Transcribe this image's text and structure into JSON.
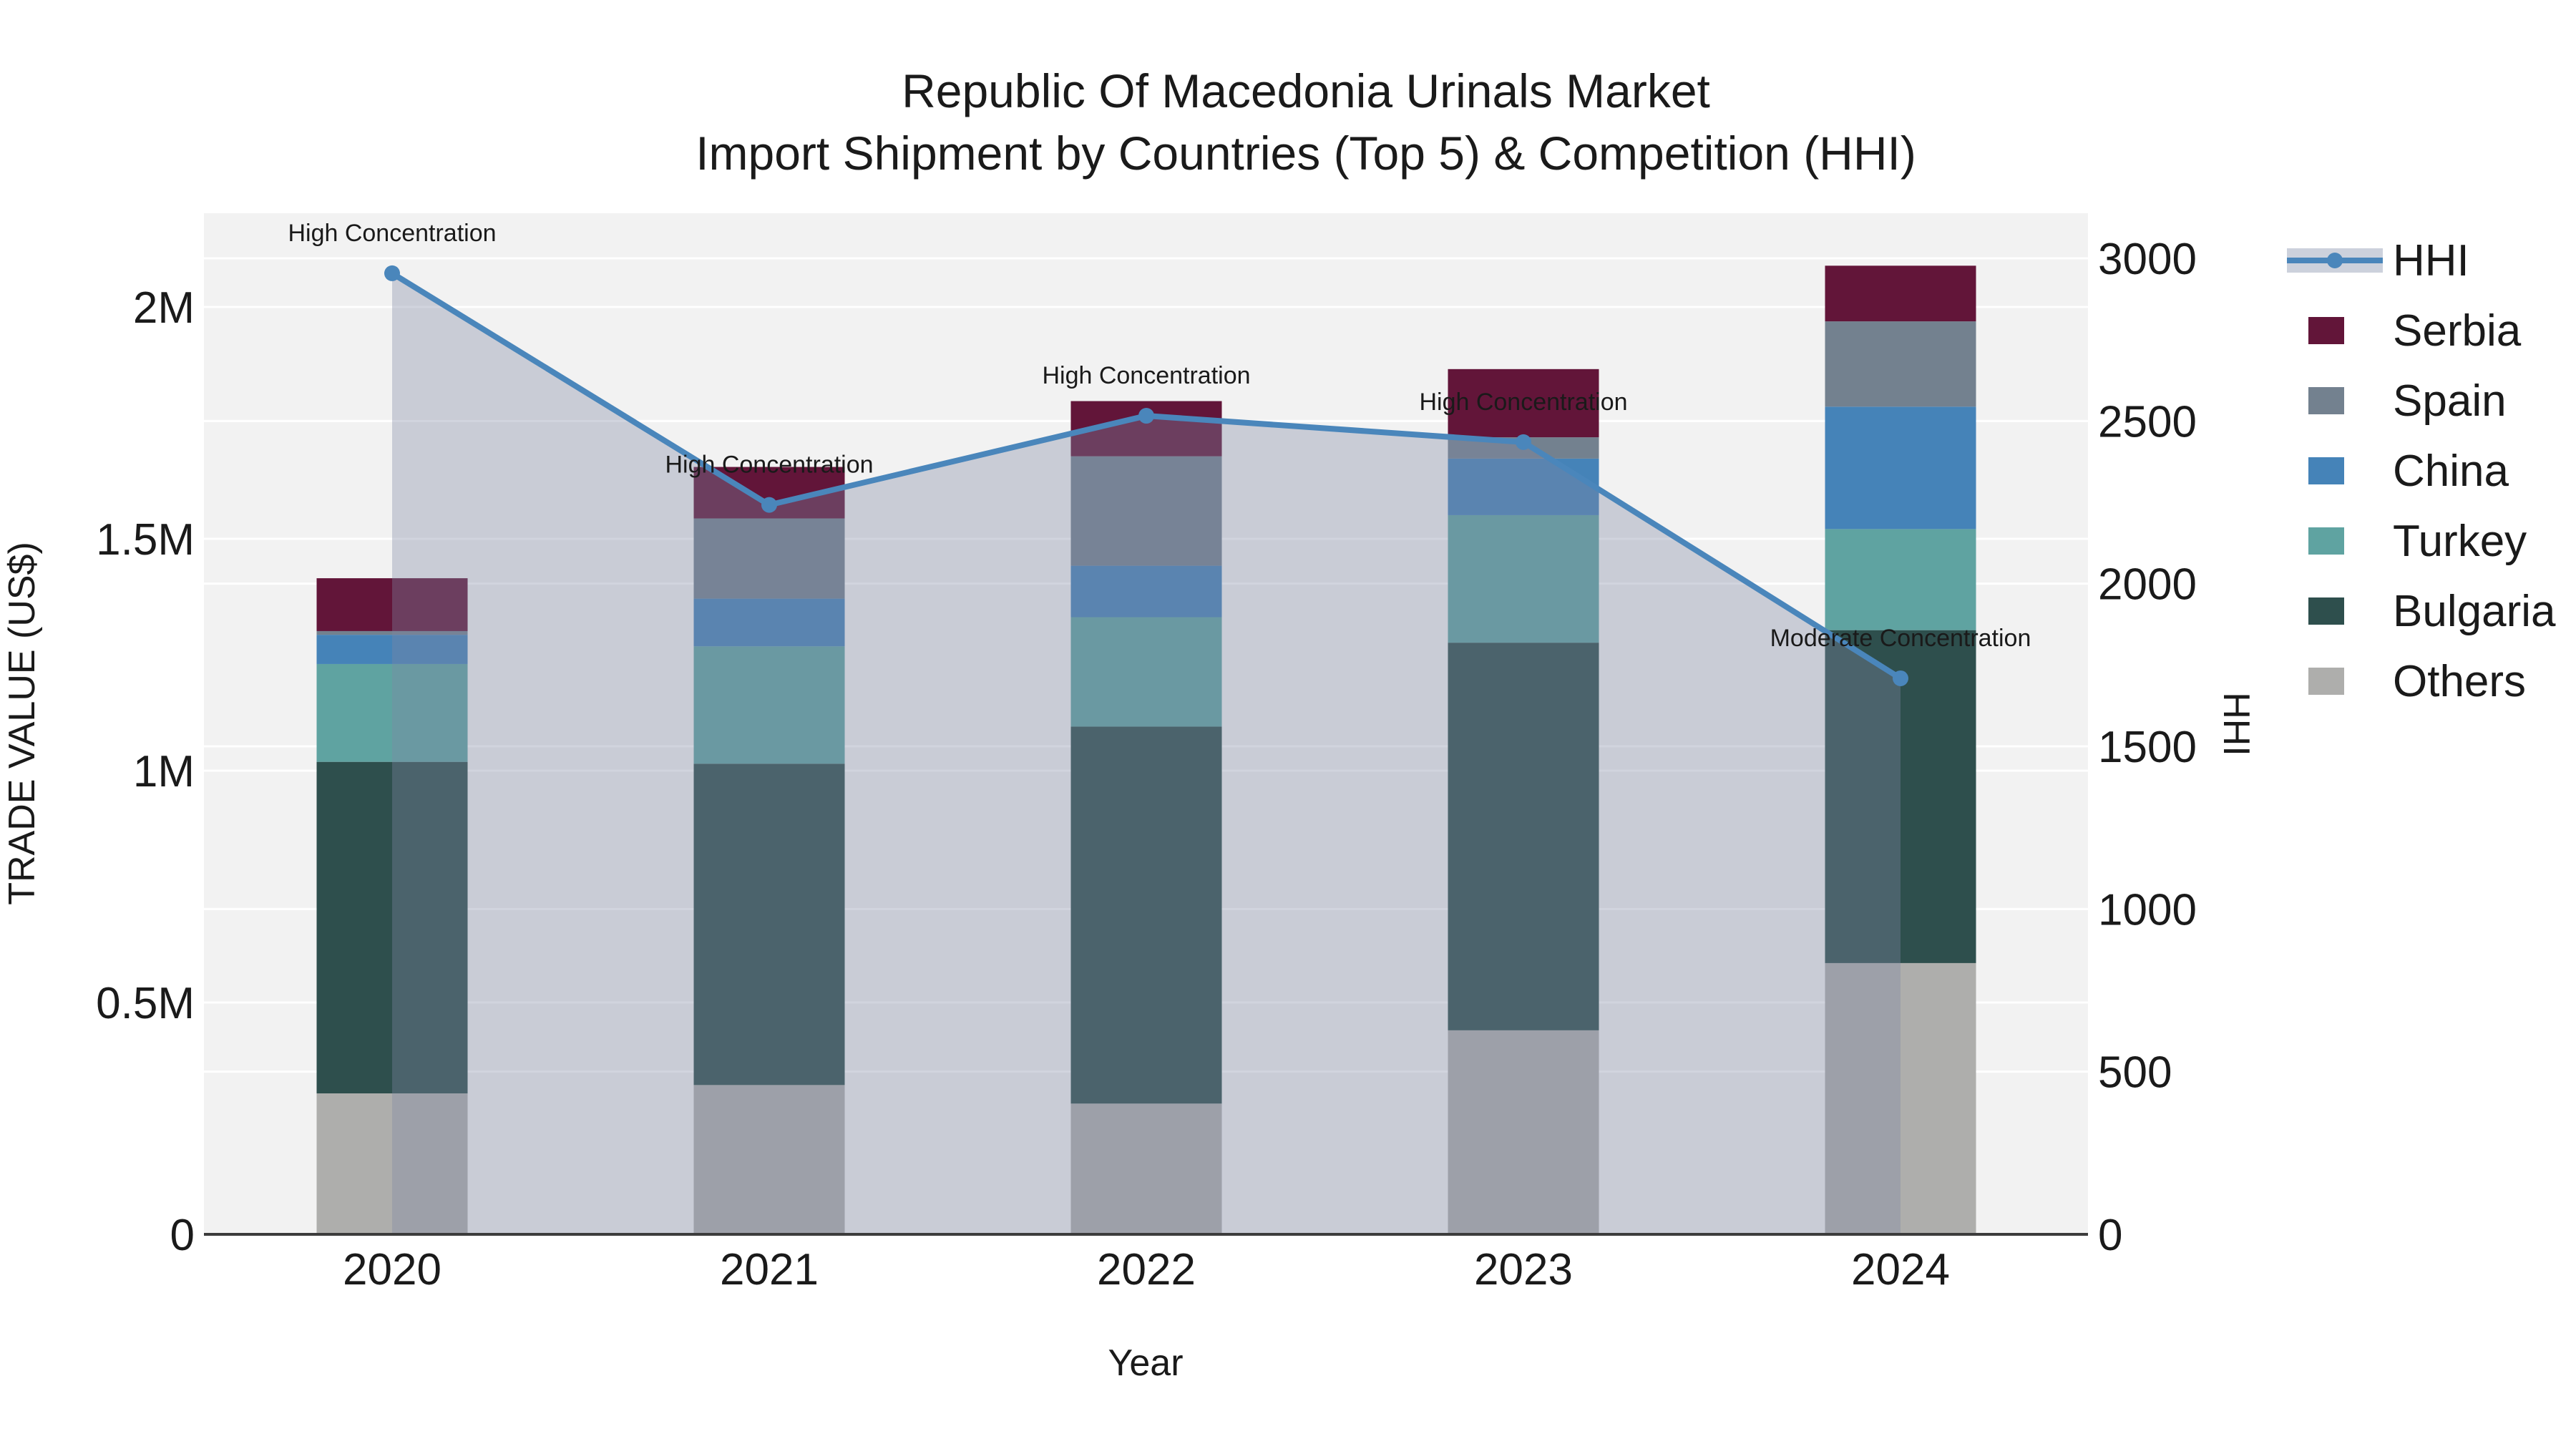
{
  "title": {
    "line1": "Republic Of Macedonia Urinals Market",
    "line2": "Import Shipment by Countries (Top 5) & Competition (HHI)"
  },
  "chart_data": {
    "type": "stacked-bar+line",
    "categories": [
      "2020",
      "2021",
      "2022",
      "2023",
      "2024"
    ],
    "x_title": "Year",
    "y_left": {
      "title": "TRADE VALUE (US$)",
      "ticks": [
        {
          "v": 0,
          "label": "0"
        },
        {
          "v": 500000,
          "label": "0.5M"
        },
        {
          "v": 1000000,
          "label": "1M"
        },
        {
          "v": 1500000,
          "label": "1.5M"
        },
        {
          "v": 2000000,
          "label": "2M"
        }
      ],
      "range": [
        0,
        2201000
      ]
    },
    "y_right": {
      "title": "HHI",
      "ticks": [
        {
          "v": 0,
          "label": "0"
        },
        {
          "v": 500,
          "label": "500"
        },
        {
          "v": 1000,
          "label": "1000"
        },
        {
          "v": 1500,
          "label": "1500"
        },
        {
          "v": 2000,
          "label": "2000"
        },
        {
          "v": 2500,
          "label": "2500"
        },
        {
          "v": 3000,
          "label": "3000"
        }
      ],
      "range": [
        0,
        3139
      ]
    },
    "bar_series": [
      {
        "name": "Others",
        "color": "#aeaeac",
        "values": [
          304000,
          322000,
          282000,
          440000,
          585000
        ]
      },
      {
        "name": "Bulgaria",
        "color": "#2e4f4d",
        "values": [
          715000,
          693000,
          813000,
          836000,
          718000
        ]
      },
      {
        "name": "Turkey",
        "color": "#5fa3a1",
        "values": [
          211000,
          253000,
          236000,
          275000,
          218000
        ]
      },
      {
        "name": "China",
        "color": "#4583b8",
        "values": [
          63000,
          103000,
          111000,
          122000,
          264000
        ]
      },
      {
        "name": "Spain",
        "color": "#73818f",
        "values": [
          8000,
          173000,
          236000,
          46000,
          184000
        ]
      },
      {
        "name": "Serbia",
        "color": "#621539",
        "values": [
          114000,
          111000,
          119000,
          147000,
          120000
        ]
      }
    ],
    "line_series": {
      "name": "HHI",
      "color": "#4a86bb",
      "area_fill": "rgba(128,136,164,0.36)",
      "values": [
        2954,
        2242,
        2516,
        2435,
        1709
      ]
    },
    "annotations": [
      {
        "category": "2020",
        "text": "High Concentration"
      },
      {
        "category": "2021",
        "text": "High Concentration"
      },
      {
        "category": "2022",
        "text": "High Concentration"
      },
      {
        "category": "2023",
        "text": "High Concentration"
      },
      {
        "category": "2024",
        "text": "Moderate Concentration"
      }
    ],
    "legend_position": "right",
    "grid": true
  },
  "legend": {
    "items": [
      {
        "label": "HHI",
        "type": "line",
        "color": "#4a86bb",
        "band": "#ccd1dc"
      },
      {
        "label": "Serbia",
        "type": "swatch",
        "color": "#621539"
      },
      {
        "label": "Spain",
        "type": "swatch",
        "color": "#73818f"
      },
      {
        "label": "China",
        "type": "swatch",
        "color": "#4583b8"
      },
      {
        "label": "Turkey",
        "type": "swatch",
        "color": "#5fa3a1"
      },
      {
        "label": "Bulgaria",
        "type": "swatch",
        "color": "#2e4f4d"
      },
      {
        "label": "Others",
        "type": "swatch",
        "color": "#aeaeac"
      }
    ]
  },
  "colors": {
    "plot_background": "#f2f2f2",
    "gridline": "#ffffff",
    "axis_line": "#3c3c3c",
    "text": "#1a1a1a"
  }
}
